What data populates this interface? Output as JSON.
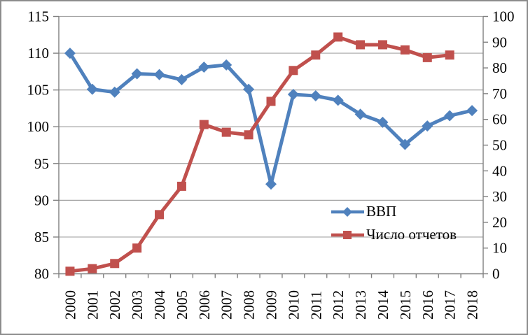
{
  "chart_data": {
    "type": "line",
    "title": "",
    "categories": [
      "2000",
      "2001",
      "2002",
      "2003",
      "2004",
      "2005",
      "2006",
      "2007",
      "2008",
      "2009",
      "2010",
      "2011",
      "2012",
      "2013",
      "2014",
      "2015",
      "2016",
      "2017",
      "2018"
    ],
    "series": [
      {
        "name": "ВВП",
        "axis": "left",
        "color": "#4F81BD",
        "marker": "diamond",
        "values": [
          110.0,
          105.1,
          104.7,
          107.2,
          107.1,
          106.4,
          108.1,
          108.4,
          105.1,
          92.2,
          104.4,
          104.2,
          103.6,
          101.7,
          100.6,
          97.6,
          100.1,
          101.5,
          102.2
        ]
      },
      {
        "name": "Число отчетов",
        "axis": "right",
        "color": "#C0504D",
        "marker": "square",
        "values": [
          1,
          2,
          4,
          10,
          23,
          34,
          58,
          55,
          54,
          67,
          79,
          85,
          92,
          89,
          89,
          87,
          84,
          85,
          null
        ]
      }
    ],
    "left_axis": {
      "min": 80,
      "max": 115,
      "step": 5,
      "ticks": [
        "80",
        "85",
        "90",
        "95",
        "100",
        "105",
        "110",
        "115"
      ]
    },
    "right_axis": {
      "min": 0,
      "max": 100,
      "step": 10,
      "ticks": [
        "0",
        "10",
        "20",
        "30",
        "40",
        "50",
        "60",
        "70",
        "80",
        "90",
        "100"
      ]
    },
    "legend": {
      "position": "inside-center-right",
      "items": [
        "ВВП",
        "Число отчетов"
      ]
    },
    "grid": true,
    "x_labels_rotated_deg": -90,
    "colors": {
      "gridline": "#a3a3a3",
      "axis": "#7f7f7f",
      "text": "#000000",
      "background": "#ffffff",
      "frame": "#8c8c8c"
    }
  }
}
